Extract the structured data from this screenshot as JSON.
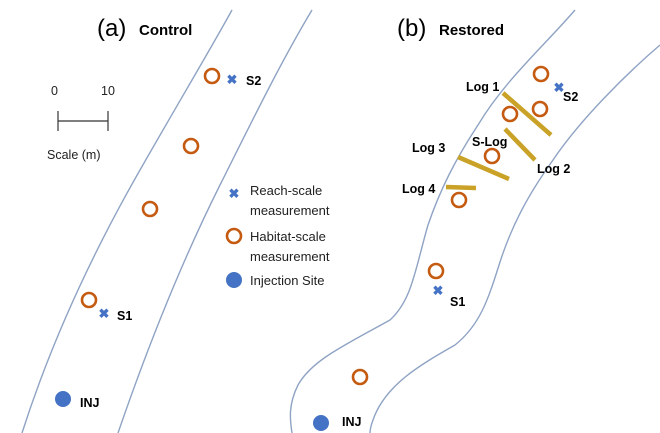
{
  "colors": {
    "bank": "#8fa3c4",
    "habitat": "#c55a11",
    "reach": "#4472c4",
    "injection": "#4472c4",
    "log": "#c9a227"
  },
  "panels": {
    "a": {
      "letter": "(a)",
      "title": "Control"
    },
    "b": {
      "letter": "(b)",
      "title": "Restored"
    }
  },
  "scale_bar": {
    "tick_start": "0",
    "tick_end": "10",
    "label": "Scale (m)"
  },
  "legend": {
    "reach_icon": "cross-icon",
    "reach_line1": "Reach-scale",
    "reach_line2": "measurement",
    "habitat_icon": "ring-icon",
    "habitat_line1": "Habitat-scale",
    "habitat_line2": "measurement",
    "injection_icon": "filled-circle-icon",
    "injection_label": "Injection Site"
  },
  "site_labels": {
    "a_s1": "S1",
    "a_s2": "S2",
    "a_inj": "INJ",
    "b_s1": "S1",
    "b_s2": "S2",
    "b_inj": "INJ"
  },
  "logs": {
    "log1": "Log 1",
    "log2": "Log 2",
    "log3": "Log 3",
    "log4": "Log 4",
    "slog": "S-Log"
  }
}
